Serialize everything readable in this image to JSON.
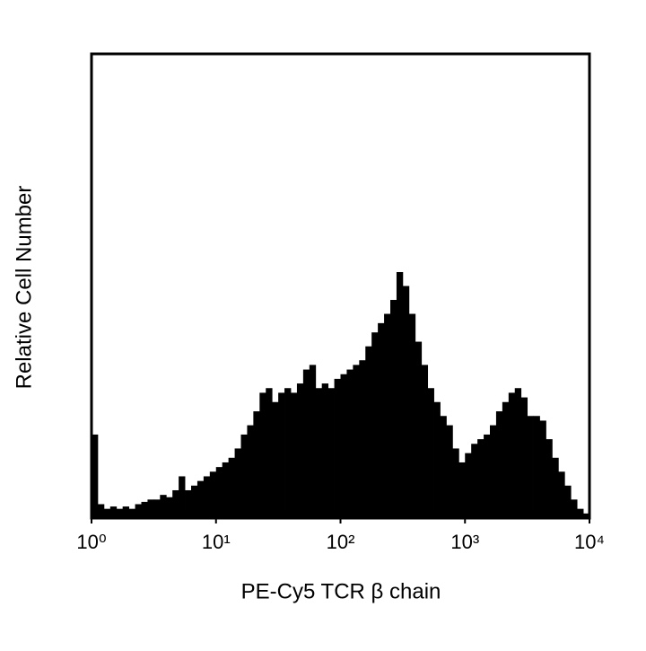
{
  "chart_data": {
    "type": "histogram",
    "xlabel": "PE-Cy5 TCR β chain",
    "ylabel": "Relative Cell Number",
    "xscale": "log",
    "xlim": [
      1,
      10000
    ],
    "xticks": [
      {
        "value": 1,
        "label": "10⁰"
      },
      {
        "value": 10,
        "label": "10¹"
      },
      {
        "value": 100,
        "label": "10²"
      },
      {
        "value": 1000,
        "label": "10³"
      },
      {
        "value": 10000,
        "label": "10⁴"
      }
    ],
    "ylim": [
      0,
      100
    ],
    "color": "#000000",
    "bins": [
      1,
      1.122,
      1.259,
      1.413,
      1.585,
      1.778,
      1.995,
      2.239,
      2.512,
      2.818,
      3.162,
      3.548,
      3.981,
      4.467,
      5.012,
      5.623,
      6.31,
      7.079,
      7.943,
      8.913,
      10,
      11.22,
      12.59,
      14.13,
      15.85,
      17.78,
      19.95,
      22.39,
      25.12,
      28.18,
      31.62,
      35.48,
      39.81,
      44.67,
      50.12,
      56.23,
      63.1,
      70.79,
      79.43,
      89.13,
      100,
      112.2,
      125.9,
      141.3,
      158.5,
      177.8,
      199.5,
      223.9,
      251.2,
      281.8,
      316.2,
      354.8,
      398.1,
      446.7,
      501.2,
      562.3,
      631,
      707.9,
      794.3,
      891.3,
      1000,
      1122,
      1259,
      1413,
      1585,
      1778,
      1995,
      2239,
      2512,
      2818,
      3162,
      3548,
      3981,
      4467,
      5012,
      5623,
      6310,
      7079,
      7943,
      8913,
      10000
    ],
    "values": [
      18,
      3,
      2,
      2.5,
      2,
      2.5,
      2,
      3,
      3.5,
      4,
      4,
      5,
      4.5,
      6,
      9,
      6,
      7,
      8,
      9,
      10,
      11,
      12,
      13,
      15,
      18,
      20,
      23,
      27,
      28,
      25,
      27,
      28,
      27,
      29,
      32,
      33,
      28,
      29,
      28,
      30,
      31,
      32,
      33,
      34,
      37,
      40,
      42,
      44,
      47,
      53,
      50,
      44,
      38,
      33,
      28,
      25,
      22,
      20,
      15,
      12,
      14,
      16,
      17,
      18,
      20,
      23,
      25,
      27,
      28,
      26,
      22,
      22,
      21,
      17,
      13,
      10,
      7,
      4,
      2,
      1
    ]
  }
}
